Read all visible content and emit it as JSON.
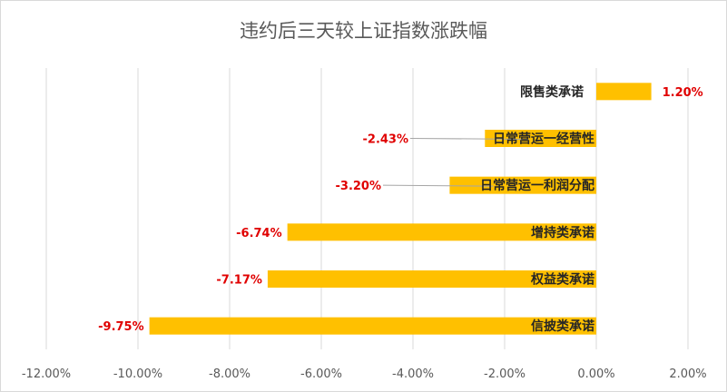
{
  "chart_data": {
    "type": "bar",
    "orientation": "horizontal",
    "title": "违约后三天较上证指数涨跌幅",
    "categories": [
      "限售类承诺",
      "日常营运一经营性",
      "日常营运一利润分配",
      "增持类承诺",
      "权益类承诺",
      "信披类承诺"
    ],
    "values": [
      1.2,
      -2.43,
      -3.2,
      -6.74,
      -7.17,
      -9.75
    ],
    "data_labels": [
      "1.20%",
      "-2.43%",
      "-3.20%",
      "-6.74%",
      "-7.17%",
      "-9.75%"
    ],
    "xlim": [
      -12,
      2
    ],
    "x_ticks": [
      -12,
      -10,
      -8,
      -6,
      -4,
      -2,
      0,
      2
    ],
    "x_tick_labels": [
      "-12.00%",
      "-10.00%",
      "-8.00%",
      "-6.00%",
      "-4.00%",
      "-2.00%",
      "0.00%",
      "2.00%"
    ],
    "bar_color": "#ffc000",
    "label_color": "#e00000",
    "grid": true,
    "legend": "none"
  }
}
